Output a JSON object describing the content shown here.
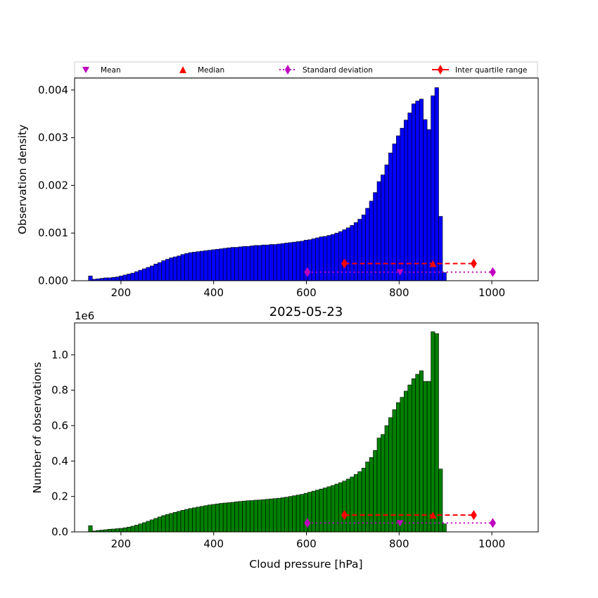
{
  "legend": {
    "entries": [
      {
        "label": "Mean",
        "marker": "triangle-down",
        "color": "#bf00bf"
      },
      {
        "label": "Median",
        "marker": "triangle-up",
        "color": "#ff0000"
      },
      {
        "label": "Standard deviation",
        "marker": "diamond",
        "line": "dotted",
        "color": "#bf00bf"
      },
      {
        "label": "Inter quartile range",
        "marker": "diamond",
        "line": "solid",
        "color": "#ff0000"
      }
    ]
  },
  "chart_data": [
    {
      "type": "bar",
      "subtype": "histogram",
      "title": "",
      "xlabel": "",
      "ylabel": "Observation density",
      "xlim": [
        100,
        1100
      ],
      "ylim": [
        0,
        0.00425
      ],
      "x_ticks": [
        200,
        400,
        600,
        800,
        1000
      ],
      "y_ticks": [
        0.0,
        0.001,
        0.002,
        0.003,
        0.004
      ],
      "y_tick_labels": [
        "0.000",
        "0.001",
        "0.002",
        "0.003",
        "0.004"
      ],
      "bar_color": "#0000ff",
      "bin_start": 130,
      "bin_width": 8.3,
      "values": [
        0.0001,
        3e-05,
        4e-05,
        5e-05,
        6e-05,
        6e-05,
        7e-05,
        8e-05,
        0.0001,
        0.00012,
        0.00014,
        0.00016,
        0.00019,
        0.00022,
        0.00025,
        0.00028,
        0.00031,
        0.00035,
        0.00038,
        0.00042,
        0.00045,
        0.00048,
        0.0005,
        0.00052,
        0.00055,
        0.00057,
        0.00059,
        0.0006,
        0.00061,
        0.00062,
        0.00063,
        0.00064,
        0.00065,
        0.00066,
        0.00067,
        0.00068,
        0.00069,
        0.0007,
        0.0007,
        0.00071,
        0.00072,
        0.00072,
        0.00073,
        0.00074,
        0.00074,
        0.00075,
        0.00075,
        0.00076,
        0.00076,
        0.00077,
        0.00078,
        0.00079,
        0.0008,
        0.00081,
        0.00082,
        0.00083,
        0.00085,
        0.00086,
        0.00088,
        0.0009,
        0.00092,
        0.00093,
        0.00095,
        0.00097,
        0.001,
        0.00103,
        0.00107,
        0.00111,
        0.00116,
        0.00122,
        0.00129,
        0.00138,
        0.00152,
        0.00167,
        0.00185,
        0.00208,
        0.00222,
        0.00243,
        0.00268,
        0.00287,
        0.00304,
        0.0032,
        0.00337,
        0.00352,
        0.00371,
        0.00377,
        0.00381,
        0.00338,
        0.00317,
        0.00388,
        0.00405,
        0.00135,
        0.00017
      ],
      "markers": {
        "mean": {
          "x": 802,
          "y": 0.00018
        },
        "median": {
          "x": 873,
          "y": 0.00036
        },
        "std_range": [
          602,
          1002
        ],
        "std_y": 0.00018,
        "iqr_range": [
          682,
          961
        ],
        "iqr_y": 0.00036
      }
    },
    {
      "type": "bar",
      "subtype": "histogram",
      "title": "2025-05-23",
      "xlabel": "Cloud pressure [hPa]",
      "ylabel": "Number of observations",
      "y_offset_label": "1e6",
      "xlim": [
        100,
        1100
      ],
      "ylim": [
        0,
        1.18
      ],
      "y_unit_scale": 1000000,
      "x_ticks": [
        200,
        400,
        600,
        800,
        1000
      ],
      "y_ticks": [
        0.0,
        0.2,
        0.4,
        0.6,
        0.8,
        1.0
      ],
      "y_tick_labels": [
        "0.0",
        "0.2",
        "0.4",
        "0.6",
        "0.8",
        "1.0"
      ],
      "bar_color": "#008000",
      "bin_start": 130,
      "bin_width": 8.3,
      "values": [
        0.035,
        0.005,
        0.008,
        0.01,
        0.012,
        0.015,
        0.016,
        0.018,
        0.02,
        0.023,
        0.027,
        0.032,
        0.038,
        0.045,
        0.052,
        0.06,
        0.068,
        0.076,
        0.084,
        0.092,
        0.098,
        0.104,
        0.11,
        0.116,
        0.122,
        0.127,
        0.132,
        0.136,
        0.14,
        0.144,
        0.148,
        0.152,
        0.155,
        0.158,
        0.161,
        0.163,
        0.165,
        0.167,
        0.17,
        0.172,
        0.174,
        0.176,
        0.177,
        0.179,
        0.18,
        0.182,
        0.184,
        0.186,
        0.188,
        0.19,
        0.193,
        0.196,
        0.2,
        0.204,
        0.208,
        0.212,
        0.218,
        0.224,
        0.23,
        0.236,
        0.242,
        0.248,
        0.255,
        0.262,
        0.27,
        0.278,
        0.287,
        0.298,
        0.31,
        0.324,
        0.34,
        0.36,
        0.395,
        0.42,
        0.46,
        0.53,
        0.55,
        0.6,
        0.645,
        0.69,
        0.73,
        0.76,
        0.795,
        0.83,
        0.865,
        0.89,
        0.91,
        0.85,
        0.85,
        1.13,
        1.12,
        0.355,
        0.045
      ],
      "markers": {
        "mean": {
          "x": 802,
          "y": 0.05
        },
        "median": {
          "x": 873,
          "y": 0.095
        },
        "std_range": [
          602,
          1002
        ],
        "std_y": 0.05,
        "iqr_range": [
          682,
          961
        ],
        "iqr_y": 0.095
      }
    }
  ]
}
